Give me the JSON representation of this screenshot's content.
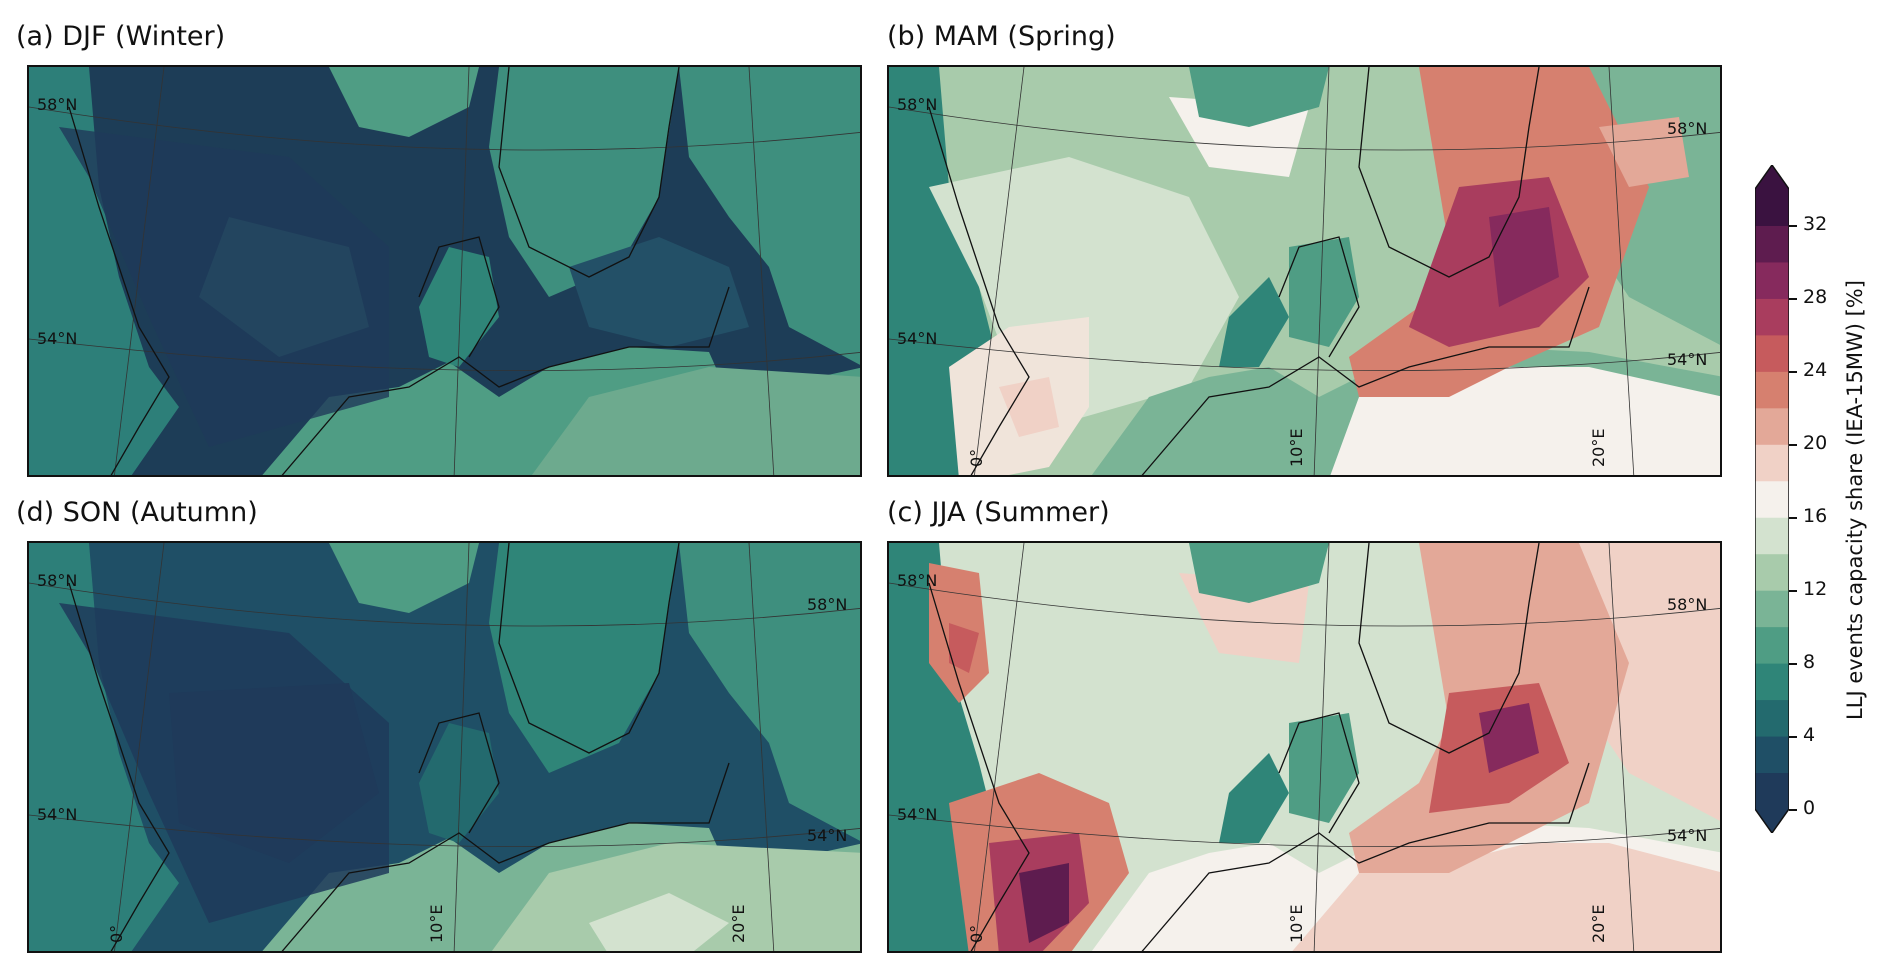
{
  "panels": [
    {
      "id": "a",
      "title": "(a) DJF (Winter)"
    },
    {
      "id": "b",
      "title": "(b) MAM (Spring)"
    },
    {
      "id": "d",
      "title": "(d) SON (Autumn)"
    },
    {
      "id": "c",
      "title": "(c) JJA (Summer)"
    }
  ],
  "map_labels": {
    "lat58": "58°N",
    "lat54": "54°N",
    "lon0": "0°",
    "lon10": "10°E",
    "lon20": "20°E"
  },
  "colorbar": {
    "title": "LLJ events capacity share (IEA-15MW) [%]",
    "ticks": [
      "0",
      "4",
      "8",
      "12",
      "16",
      "20",
      "24",
      "28",
      "32"
    ],
    "colors": [
      "#1f3a5a",
      "#1f4f66",
      "#236a6e",
      "#2f8578",
      "#4f9d84",
      "#7ab496",
      "#a8cbab",
      "#d3e2cf",
      "#f5f1ec",
      "#f0d1c6",
      "#e3a898",
      "#d6806f",
      "#c65b5d",
      "#a93d5e",
      "#862a5d",
      "#5e1c4f",
      "#3a1240"
    ]
  }
}
